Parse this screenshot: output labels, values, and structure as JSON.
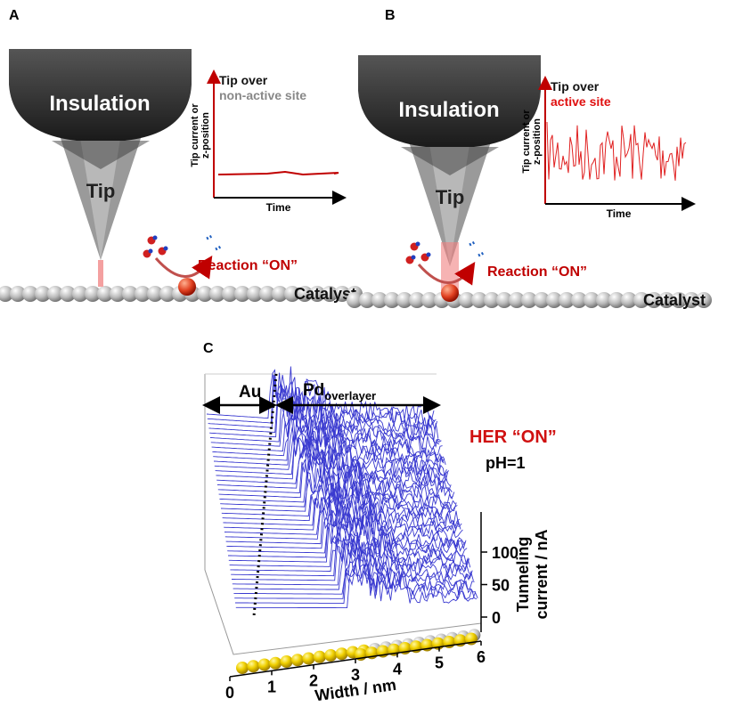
{
  "panel_a": {
    "label": "A",
    "insulation": "Insulation",
    "tip": "Tip",
    "inset": {
      "title": "Tip over",
      "subtitle": "non-active site",
      "y_label": [
        "Tip current or",
        "z-position"
      ],
      "x_label": "Time"
    },
    "reaction": "Reaction “ON”",
    "catalyst": "Catalyst"
  },
  "panel_b": {
    "label": "B",
    "insulation": "Insulation",
    "tip": "Tip",
    "inset": {
      "title": "Tip over",
      "subtitle": "active site",
      "y_label": [
        "Tip current or",
        "z-position"
      ],
      "x_label": "Time"
    },
    "reaction": "Reaction “ON”",
    "catalyst": "Catalyst"
  },
  "panel_c": {
    "label": "C",
    "region_left": "Au",
    "region_right": "Pd",
    "region_right_sub": "overlayer",
    "condition": "HER “ON”",
    "ph": "pH=1",
    "x_ticks": [
      0,
      1,
      2,
      3,
      4,
      5,
      6
    ],
    "x_label": "Width / nm",
    "z_ticks": [
      0,
      50,
      100
    ],
    "z_label": [
      "Tunneling",
      "current / nA"
    ]
  }
}
